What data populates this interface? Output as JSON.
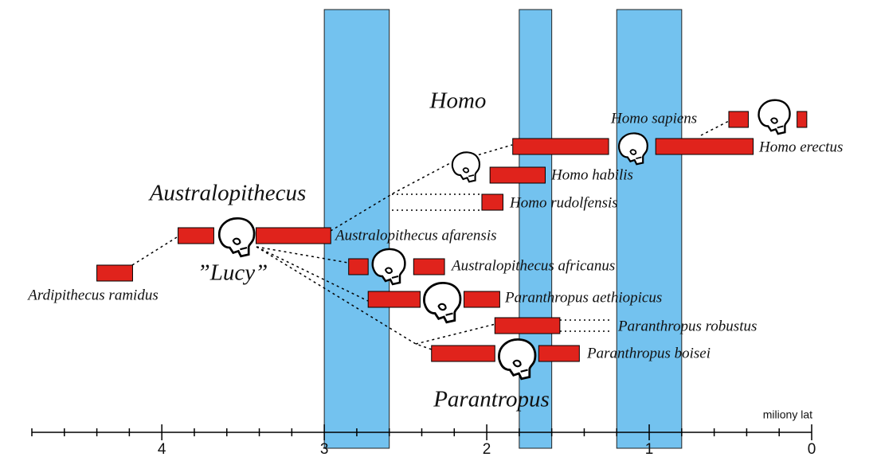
{
  "axis": {
    "label": "miliony lat",
    "range": [
      4.8,
      0
    ],
    "ticks": [
      4,
      3,
      2,
      1,
      0
    ],
    "minor_ticks": [
      4.8,
      4.6,
      4.4,
      4.2,
      3.8,
      3.6,
      3.4,
      3.2,
      2.8,
      2.6,
      2.4,
      2.2,
      1.8,
      1.6,
      1.4,
      1.2,
      0.8,
      0.6,
      0.4,
      0.2
    ]
  },
  "bands": [
    [
      3.0,
      2.6
    ],
    [
      1.8,
      1.6
    ],
    [
      1.2,
      0.8
    ]
  ],
  "groups": [
    "Homo",
    "Australopithecus",
    "”Lucy”",
    "Parantropus"
  ],
  "species": [
    {
      "name": "Ardipithecus ramidus",
      "segments": [
        [
          4.4,
          4.18
        ]
      ]
    },
    {
      "name": "Australopithecus afarensis",
      "segments": [
        [
          3.9,
          3.68
        ],
        [
          3.42,
          2.96
        ]
      ]
    },
    {
      "name": "Australopithecus africanus",
      "segments": [
        [
          2.85,
          2.73
        ],
        [
          2.45,
          2.26
        ]
      ]
    },
    {
      "name": "Paranthropus aethiopicus",
      "segments": [
        [
          2.73,
          2.41
        ],
        [
          2.14,
          1.92
        ]
      ]
    },
    {
      "name": "Paranthropus robustus",
      "segments": [
        [
          1.95,
          1.55
        ]
      ]
    },
    {
      "name": "Paranthropus boisei",
      "segments": [
        [
          2.34,
          1.95
        ],
        [
          1.68,
          1.43
        ]
      ]
    },
    {
      "name": "Homo rudolfensis",
      "segments": [
        [
          2.03,
          1.9
        ]
      ]
    },
    {
      "name": "Homo habilis",
      "segments": [
        [
          1.98,
          1.64
        ]
      ]
    },
    {
      "name": "Homo erectus",
      "segments": [
        [
          1.84,
          1.25
        ],
        [
          0.96,
          0.36
        ]
      ]
    },
    {
      "name": "Homo sapiens",
      "segments": [
        [
          0.51,
          0.39
        ],
        [
          0.09,
          0.03
        ]
      ]
    }
  ]
}
